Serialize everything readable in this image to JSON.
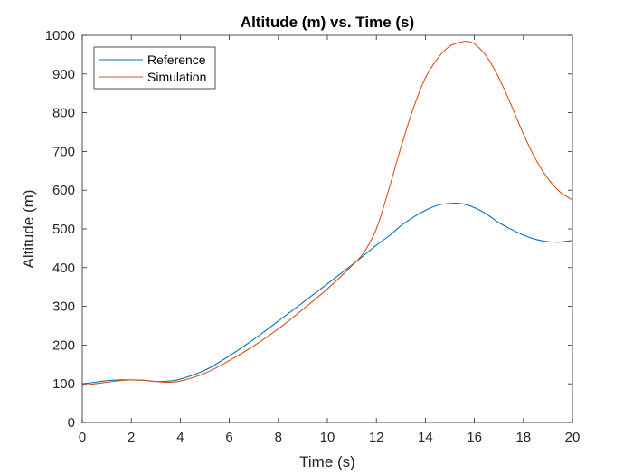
{
  "chart_data": {
    "type": "line",
    "title": "Altitude (m) vs. Time (s)",
    "xlabel": "Time (s)",
    "ylabel": "Altitude (m)",
    "xlim": [
      0,
      20
    ],
    "ylim": [
      0,
      1000
    ],
    "xticks": [
      0,
      2,
      4,
      6,
      8,
      10,
      12,
      14,
      16,
      18,
      20
    ],
    "yticks": [
      0,
      100,
      200,
      300,
      400,
      500,
      600,
      700,
      800,
      900,
      1000
    ],
    "grid": false,
    "legend_position": "top-left",
    "series": [
      {
        "name": "Reference",
        "color": "#0072BD",
        "x": [
          0,
          0.5,
          1,
          1.5,
          2,
          2.5,
          3,
          3.5,
          4,
          5,
          6,
          7,
          8,
          9,
          10,
          11,
          11.5,
          12,
          12.5,
          13,
          13.5,
          14,
          14.5,
          15,
          15.5,
          16,
          16.5,
          17,
          17.5,
          18,
          18.5,
          19,
          19.5,
          20
        ],
        "values": [
          100,
          104,
          108,
          110,
          110,
          109,
          106,
          107,
          112,
          135,
          172,
          215,
          262,
          310,
          358,
          407,
          432,
          458,
          481,
          508,
          530,
          548,
          561,
          566,
          565,
          555,
          538,
          516,
          499,
          484,
          473,
          467,
          466,
          470
        ]
      },
      {
        "name": "Simulation",
        "color": "#D95319",
        "x": [
          0,
          0.5,
          1,
          1.5,
          2,
          2.5,
          3,
          3.5,
          4,
          5,
          6,
          7,
          8,
          9,
          10,
          11,
          11.5,
          12,
          12.5,
          13,
          13.5,
          14,
          14.5,
          15,
          15.5,
          15.7,
          16,
          16.5,
          17,
          17.5,
          18,
          18.5,
          19,
          19.5,
          20
        ],
        "values": [
          96,
          100,
          104,
          108,
          110,
          109,
          106,
          104,
          107,
          127,
          160,
          198,
          242,
          292,
          345,
          405,
          440,
          500,
          600,
          710,
          810,
          890,
          940,
          972,
          983,
          984,
          978,
          945,
          890,
          820,
          745,
          680,
          630,
          595,
          575
        ]
      }
    ]
  }
}
